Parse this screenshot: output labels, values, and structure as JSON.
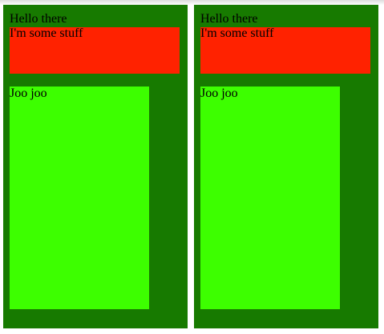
{
  "colors": {
    "panel_bg": "#177a00",
    "stuff_bg": "#ff2200",
    "joo_bg": "#3dff00"
  },
  "panels": [
    {
      "greeting": "Hello there",
      "stuff": "I'm some stuff",
      "joo": "Joo joo"
    },
    {
      "greeting": "Hello there",
      "stuff": "I'm some stuff",
      "joo": "Joo joo"
    }
  ]
}
